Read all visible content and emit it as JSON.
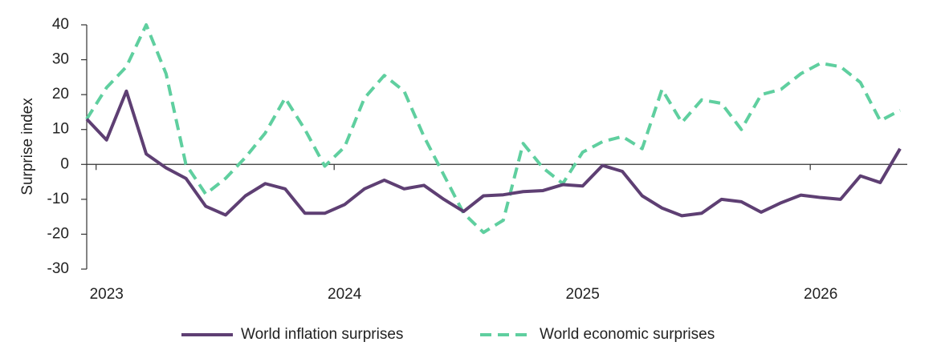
{
  "chart_data": {
    "type": "line",
    "y_label": "Surprise index",
    "categories": [
      null,
      "2023",
      null,
      null,
      null,
      null,
      null,
      null,
      null,
      null,
      null,
      null,
      null,
      "2024",
      null,
      null,
      null,
      null,
      null,
      null,
      null,
      null,
      null,
      null,
      null,
      "2025",
      null,
      null,
      null,
      null,
      null,
      null,
      null,
      null,
      null,
      null,
      null,
      "2026",
      null,
      null,
      null,
      null
    ],
    "series": [
      {
        "name": "World inflation surprises",
        "color": "#5e3f73",
        "dashed": false,
        "values": [
          13,
          7,
          21,
          3,
          -1,
          -4,
          -12,
          -14.5,
          -9,
          -5.5,
          -7,
          -14,
          -14,
          -11.5,
          -7,
          -4.5,
          -7,
          -6,
          -10,
          -13.5,
          -9,
          -8.7,
          -7.8,
          -7.5,
          -5.8,
          -6.2,
          -0.3,
          -2,
          -9,
          -12.5,
          -14.7,
          -14,
          -10,
          -10.7,
          -13.7,
          -11,
          -8.8,
          -9.5,
          -10,
          -3.3,
          -5.2,
          4.5
        ]
      },
      {
        "name": "World economic surprises",
        "color": "#5fcf9f",
        "dashed": true,
        "values": [
          13,
          22,
          28,
          40,
          26,
          0,
          -8.5,
          -4,
          2,
          9,
          19,
          10,
          -0.5,
          5,
          19,
          25.5,
          21,
          8,
          -3,
          -14,
          -19.5,
          -16,
          6,
          -1,
          -5.5,
          3.5,
          6.5,
          8,
          4.5,
          21.5,
          12,
          18.5,
          17.5,
          10,
          20,
          21.5,
          26,
          29,
          28,
          23.5,
          12.5,
          15.5
        ]
      }
    ],
    "ylim": [
      -30,
      40
    ],
    "yticks": [
      -30,
      -20,
      -10,
      0,
      10,
      20,
      30,
      40
    ],
    "legend": "bottom"
  }
}
